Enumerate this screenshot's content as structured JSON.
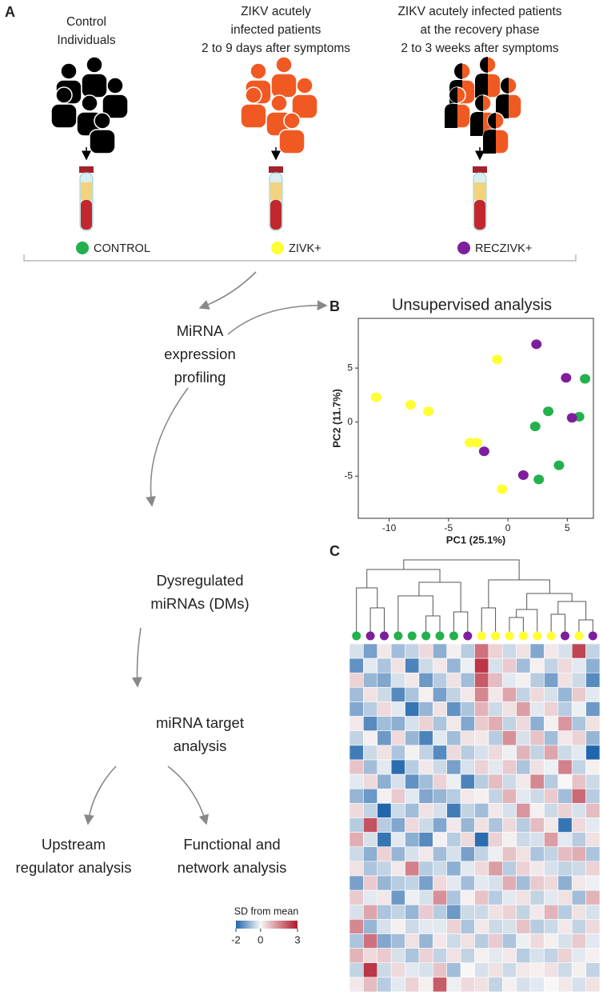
{
  "panel_a": {
    "label": "A",
    "groups": [
      {
        "lines": [
          "Control",
          "Individuals"
        ],
        "tag": "CONTROL",
        "color": "#22b14c",
        "icon_color": "#000000"
      },
      {
        "lines": [
          "ZIKV acutely",
          "infected patients",
          "2 to 9 days after symptoms"
        ],
        "tag": "ZIVK+",
        "color": "#ffff33",
        "icon_color": "#f05a22"
      },
      {
        "lines": [
          "ZIKV acutely infected patients",
          "at the recovery phase",
          "2 to 3 weeks after symptoms"
        ],
        "tag": "RECZIVK+",
        "color": "#7e1e9c",
        "icon_color": "#f05a22"
      }
    ],
    "steps": [
      {
        "lines": [
          "MiRNA",
          "expression",
          "profiling"
        ]
      },
      {
        "lines": [
          "Dysregulated",
          "miRNAs (DMs)"
        ]
      },
      {
        "lines": [
          "miRNA target",
          "analysis"
        ]
      },
      {
        "lines": [
          "Upstream",
          "regulator analysis"
        ]
      },
      {
        "lines": [
          "Functional and",
          "network analysis"
        ]
      }
    ]
  },
  "panel_b": {
    "label": "B",
    "chart_data": {
      "type": "scatter",
      "title": "Unsupervised analysis",
      "x_label": "PC1 (25.1%)",
      "y_label": "PC2 (11.7%)",
      "xlim": [
        -12.6,
        7.2
      ],
      "ylim": [
        -8.9,
        9.6
      ],
      "xticks": [
        -10,
        -5,
        0,
        5
      ],
      "yticks": [
        -5,
        0,
        5
      ],
      "series": [
        {
          "color": "#22b14c",
          "x": [
            6.5,
            3.4,
            2.3,
            6.0,
            4.3,
            2.6
          ],
          "values": [
            4.0,
            1.0,
            -0.4,
            0.5,
            -4.0,
            -5.3
          ]
        },
        {
          "color": "#ffff33",
          "x": [
            -11.1,
            -8.2,
            -6.7,
            -0.9,
            -3.2,
            -2.6,
            -0.5
          ],
          "values": [
            2.3,
            1.6,
            1.0,
            5.8,
            -1.9,
            -1.9,
            -6.2
          ]
        },
        {
          "color": "#7e1e9c",
          "x": [
            2.4,
            4.9,
            5.4,
            -2.0,
            1.3
          ],
          "values": [
            7.2,
            4.1,
            0.4,
            -2.7,
            -4.9
          ]
        }
      ]
    }
  },
  "panel_c": {
    "label": "C",
    "chart_data": {
      "type": "heatmap",
      "column_colors": [
        "#22b14c",
        "#7e1e9c",
        "#7e1e9c",
        "#22b14c",
        "#22b14c",
        "#22b14c",
        "#22b14c",
        "#22b14c",
        "#7e1e9c",
        "#ffff33",
        "#ffff33",
        "#ffff33",
        "#ffff33",
        "#ffff33",
        "#ffff33",
        "#7e1e9c",
        "#ffff33",
        "#7e1e9c"
      ],
      "values": [
        [
          -0.3,
          -1.2,
          0.2,
          -0.8,
          -0.5,
          0.4,
          -1.0,
          0.1,
          -0.6,
          1.8,
          0.5,
          -0.4,
          0.3,
          -1.1,
          0.2,
          -0.3,
          2.4,
          -0.5
        ],
        [
          -1.4,
          -0.2,
          -0.7,
          0.3,
          -1.6,
          -0.4,
          0.2,
          -0.9,
          -0.1,
          2.6,
          -0.3,
          0.6,
          -0.8,
          0.1,
          -0.5,
          0.4,
          -0.2,
          -1.0
        ],
        [
          0.5,
          -0.9,
          -1.1,
          -0.3,
          0.2,
          -1.3,
          -0.6,
          0.3,
          -0.8,
          2.1,
          0.8,
          -0.2,
          0.1,
          -0.6,
          -1.2,
          0.3,
          -0.4,
          -1.5
        ],
        [
          -0.8,
          0.3,
          -0.4,
          -1.5,
          -0.7,
          0.1,
          -1.2,
          -0.5,
          0.2,
          1.5,
          0.2,
          1.1,
          -0.5,
          0.4,
          -0.3,
          -0.9,
          0.6,
          -0.2
        ],
        [
          -1.1,
          -0.6,
          0.4,
          -0.2,
          -1.8,
          -0.9,
          0.3,
          -1.4,
          -0.7,
          0.9,
          -0.4,
          0.3,
          1.2,
          -0.2,
          0.5,
          -0.6,
          -0.1,
          -1.3
        ],
        [
          0.2,
          -1.5,
          -0.8,
          -1.0,
          -0.3,
          0.5,
          -0.7,
          0.2,
          -1.1,
          0.6,
          1.0,
          -0.5,
          0.4,
          -1.0,
          0.1,
          1.3,
          -0.7,
          0.3
        ],
        [
          -0.5,
          0.1,
          -1.3,
          0.4,
          -0.9,
          -1.6,
          -0.2,
          -0.8,
          0.3,
          0.2,
          -0.6,
          1.4,
          -0.3,
          0.7,
          -0.8,
          0.2,
          0.5,
          -0.9
        ],
        [
          -1.7,
          -0.4,
          0.3,
          -0.7,
          0.1,
          -0.5,
          -1.5,
          0.4,
          -0.6,
          -0.3,
          0.4,
          -0.1,
          0.9,
          -0.5,
          1.1,
          -0.4,
          -0.2,
          -2.0
        ],
        [
          0.7,
          -0.8,
          -0.2,
          -1.9,
          -0.6,
          0.2,
          -0.4,
          -1.2,
          -0.3,
          0.5,
          -0.2,
          0.6,
          -0.7,
          0.3,
          -0.1,
          1.6,
          -0.5,
          0.1
        ],
        [
          -0.2,
          0.4,
          -1.0,
          -0.3,
          -1.4,
          -0.8,
          0.5,
          -0.1,
          -1.6,
          -0.6,
          0.8,
          -0.4,
          0.2,
          1.5,
          -0.6,
          0.0,
          0.7,
          -0.4
        ],
        [
          -0.9,
          -1.3,
          0.1,
          0.6,
          -0.2,
          -1.1,
          -0.9,
          -0.6,
          0.2,
          0.1,
          -0.5,
          0.9,
          -0.2,
          -0.4,
          0.6,
          -0.8,
          1.9,
          -0.6
        ],
        [
          0.4,
          -0.5,
          -2.0,
          -0.4,
          -0.8,
          0.3,
          -0.3,
          -1.7,
          -0.5,
          -0.8,
          0.2,
          -0.3,
          1.3,
          0.1,
          -0.4,
          0.5,
          -0.3,
          0.8
        ],
        [
          -0.6,
          2.2,
          -0.6,
          -1.1,
          0.4,
          -0.4,
          -1.1,
          0.2,
          -0.9,
          0.3,
          -0.7,
          0.4,
          -0.6,
          0.8,
          0.2,
          -1.8,
          0.4,
          -0.2
        ],
        [
          1.0,
          -0.3,
          -1.8,
          -0.2,
          -1.0,
          -1.5,
          0.1,
          -0.6,
          0.4,
          -1.9,
          0.5,
          0.1,
          -0.4,
          -0.3,
          1.2,
          -0.2,
          -0.6,
          0.3
        ],
        [
          -0.4,
          -1.0,
          0.5,
          -0.9,
          -0.3,
          0.2,
          -0.8,
          -0.3,
          -1.2,
          -0.5,
          -0.1,
          0.7,
          0.3,
          -0.7,
          -0.5,
          0.8,
          1.0,
          -0.7
        ],
        [
          0.3,
          -0.7,
          -0.5,
          0.2,
          1.6,
          -0.6,
          -0.4,
          -1.0,
          -0.2,
          0.4,
          1.2,
          -0.6,
          0.5,
          0.2,
          -0.3,
          -0.5,
          -0.4,
          0.5
        ],
        [
          -1.2,
          0.6,
          -0.9,
          -0.6,
          -0.5,
          -1.2,
          0.4,
          -0.2,
          -0.8,
          -0.2,
          -0.3,
          1.0,
          -0.8,
          0.6,
          0.4,
          -1.0,
          0.2,
          -0.1
        ],
        [
          0.6,
          -0.2,
          0.2,
          -1.3,
          -0.1,
          -0.3,
          1.4,
          -0.7,
          0.1,
          0.7,
          -0.6,
          -0.2,
          0.3,
          -0.5,
          -0.2,
          0.3,
          -0.8,
          0.9
        ],
        [
          -0.3,
          1.1,
          -0.7,
          -0.5,
          -0.9,
          0.6,
          -0.6,
          -1.3,
          -0.4,
          -0.4,
          0.3,
          0.5,
          -0.5,
          0.2,
          0.9,
          -0.6,
          0.3,
          -0.3
        ],
        [
          1.5,
          -0.9,
          -0.3,
          0.1,
          -0.4,
          -0.2,
          -0.2,
          0.5,
          -0.7,
          0.2,
          -0.4,
          -0.3,
          0.7,
          -0.6,
          -0.4,
          0.2,
          -0.5,
          0.4
        ],
        [
          -0.7,
          1.8,
          -1.1,
          -0.8,
          0.3,
          -0.9,
          0.2,
          -0.4,
          0.3,
          -0.6,
          0.6,
          -0.7,
          -0.1,
          0.4,
          0.1,
          -0.3,
          0.6,
          -0.2
        ],
        [
          0.9,
          0.4,
          0.6,
          -0.3,
          -0.7,
          0.5,
          -0.5,
          0.3,
          -0.5,
          0.1,
          -0.2,
          0.2,
          -0.6,
          -0.3,
          -0.5,
          0.5,
          -0.2,
          0.1
        ],
        [
          -0.5,
          2.6,
          -0.4,
          0.4,
          -0.2,
          -0.3,
          0.7,
          -0.8,
          0.0,
          -0.3,
          0.3,
          -0.4,
          0.2,
          0.1,
          0.3,
          -0.4,
          0.1,
          -0.5
        ],
        [
          0.2,
          0.8,
          -0.6,
          -0.2,
          0.5,
          0.1,
          2.1,
          -0.1,
          0.4,
          0.3,
          -0.5,
          0.1,
          -0.3,
          -0.2,
          0.0,
          0.2,
          -0.3,
          0.3
        ]
      ],
      "colorbar": {
        "title": "SD from mean",
        "lim": [
          -2,
          3
        ],
        "ticks": [
          -2,
          0,
          3
        ],
        "colors": [
          "#2166ac",
          "#f7f7f7",
          "#b2182b"
        ]
      }
    }
  }
}
